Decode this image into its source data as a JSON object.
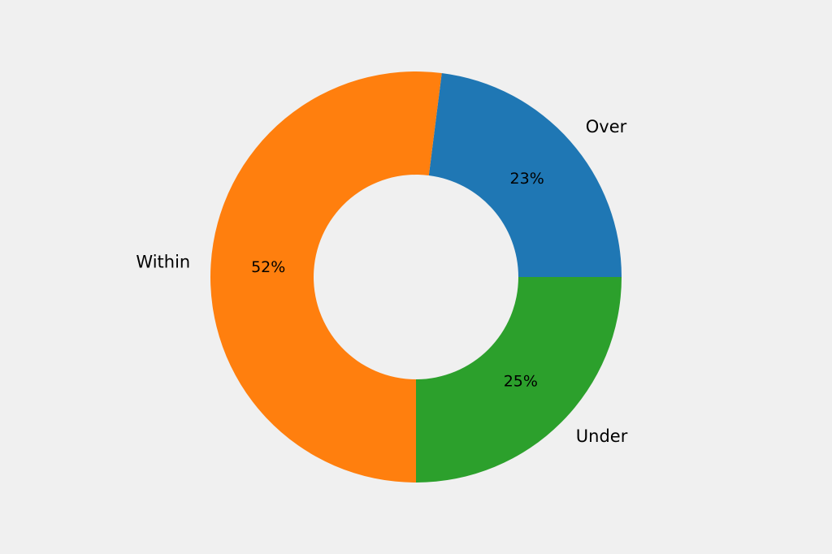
{
  "background": "#f0f0f0",
  "chart_data": {
    "type": "pie",
    "donut": true,
    "start_angle_deg": 0,
    "direction": "counterclockwise",
    "slices": [
      {
        "label": "Over",
        "value": 23,
        "pct_label": "23%",
        "color": "#1f77b4"
      },
      {
        "label": "Within",
        "value": 52,
        "pct_label": "52%",
        "color": "#ff7f0e"
      },
      {
        "label": "Under",
        "value": 25,
        "pct_label": "25%",
        "color": "#2ca02c"
      }
    ],
    "legend": "none"
  }
}
